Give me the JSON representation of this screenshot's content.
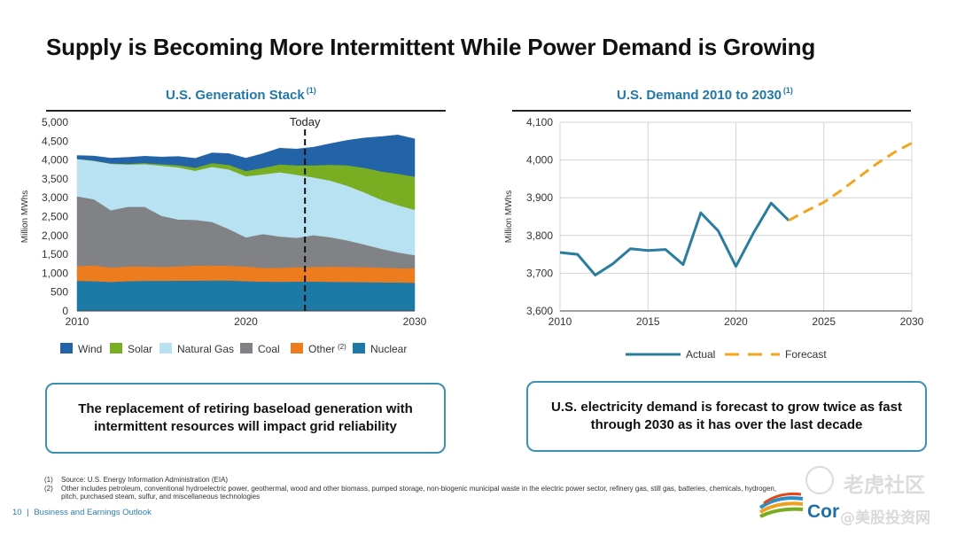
{
  "title": "Supply is Becoming More Intermittent While Power Demand is Growing",
  "left_chart": {
    "title": "U.S. Generation Stack",
    "title_note": "(1)",
    "ylabel": "Million MWhs",
    "today_label": "Today",
    "other_note": "(2)"
  },
  "right_chart": {
    "title": "U.S. Demand 2010 to 2030",
    "title_note": "(1)",
    "ylabel": "Million MWhs"
  },
  "chart_data": [
    {
      "type": "area",
      "stacked": true,
      "title": "U.S. Generation Stack",
      "ylabel": "Million MWhs",
      "xlim": [
        2010,
        2030
      ],
      "ylim": [
        0,
        5000
      ],
      "x_ticks": [
        2010,
        2020,
        2030
      ],
      "y_ticks": [
        0,
        500,
        1000,
        1500,
        2000,
        2500,
        3000,
        3500,
        4000,
        4500,
        5000
      ],
      "legend_position": "bottom",
      "annotation": {
        "label": "Today",
        "x": 2023.5
      },
      "x": [
        2010,
        2011,
        2012,
        2013,
        2014,
        2015,
        2016,
        2017,
        2018,
        2019,
        2020,
        2021,
        2022,
        2023,
        2024,
        2025,
        2026,
        2027,
        2028,
        2029,
        2030
      ],
      "series": [
        {
          "name": "Nuclear",
          "color": "#1d7aa6",
          "values": [
            800,
            790,
            770,
            790,
            800,
            800,
            805,
            805,
            810,
            810,
            790,
            780,
            775,
            780,
            780,
            775,
            770,
            765,
            760,
            755,
            750
          ]
        },
        {
          "name": "Other",
          "color": "#ec7c1e",
          "values": [
            390,
            420,
            380,
            390,
            380,
            370,
            380,
            400,
            400,
            390,
            390,
            360,
            370,
            380,
            390,
            400,
            400,
            400,
            390,
            380,
            380
          ]
        },
        {
          "name": "Coal",
          "color": "#808285",
          "values": [
            1850,
            1750,
            1520,
            1580,
            1580,
            1350,
            1240,
            1210,
            1150,
            970,
            770,
            900,
            830,
            780,
            840,
            780,
            700,
            600,
            500,
            420,
            350
          ]
        },
        {
          "name": "Natural Gas",
          "color": "#b8e2f2",
          "values": [
            990,
            1020,
            1230,
            1120,
            1130,
            1330,
            1380,
            1300,
            1460,
            1580,
            1620,
            1580,
            1700,
            1670,
            1530,
            1500,
            1450,
            1380,
            1300,
            1250,
            1200
          ]
        },
        {
          "name": "Solar",
          "color": "#79ae23",
          "values": [
            0,
            5,
            10,
            20,
            30,
            40,
            60,
            80,
            100,
            120,
            140,
            170,
            210,
            250,
            320,
            420,
            540,
            650,
            750,
            830,
            880
          ]
        },
        {
          "name": "Wind",
          "color": "#2363a8",
          "values": [
            90,
            120,
            140,
            170,
            180,
            190,
            230,
            250,
            270,
            300,
            340,
            380,
            430,
            430,
            480,
            560,
            660,
            790,
            920,
            1030,
            1000
          ]
        }
      ]
    },
    {
      "type": "line",
      "title": "U.S. Demand 2010 to 2030",
      "ylabel": "Million MWhs",
      "xlim": [
        2010,
        2030
      ],
      "ylim": [
        3600,
        4100
      ],
      "x_ticks": [
        2010,
        2015,
        2020,
        2025,
        2030
      ],
      "y_ticks": [
        3600,
        3700,
        3800,
        3900,
        4000,
        4100
      ],
      "y_tick_labels": [
        "3,600",
        "3,700",
        "3,800",
        "3,900",
        "4,000",
        "4,100"
      ],
      "grid": true,
      "legend_position": "bottom",
      "series": [
        {
          "name": "Actual",
          "style": "solid",
          "color": "#2a7d9e",
          "x": [
            2010,
            2011,
            2012,
            2013,
            2014,
            2015,
            2016,
            2017,
            2018,
            2019,
            2020,
            2021,
            2022,
            2023
          ],
          "y": [
            3755,
            3750,
            3695,
            3725,
            3765,
            3760,
            3763,
            3723,
            3860,
            3812,
            3718,
            3807,
            3886,
            3840
          ]
        },
        {
          "name": "Forecast",
          "style": "dashed",
          "color": "#f2a51f",
          "x": [
            2023,
            2024,
            2025,
            2026,
            2027,
            2028,
            2029,
            2030
          ],
          "y": [
            3840,
            3865,
            3888,
            3920,
            3955,
            3990,
            4020,
            4045
          ]
        }
      ]
    }
  ],
  "callouts": {
    "left": "The replacement of retiring baseload generation with intermittent resources will impact grid reliability",
    "right": "U.S. electricity demand is forecast to grow twice as fast through 2030 as it has over the last decade"
  },
  "footnotes": [
    {
      "num": "(1)",
      "text": "Source: U.S. Energy Information Administration (EIA)"
    },
    {
      "num": "(2)",
      "text": "Other includes petroleum, conventional hydroelectric power, geothermal, wood and other biomass, pumped storage, non-biogenic municipal waste in the electric power sector, refinery gas, still gas, batteries, chemicals, hydrogen, pitch, purchased steam, sulfur, and miscellaneous technologies"
    }
  ],
  "footer": {
    "page": "10",
    "separator": "|",
    "section": "Business and Earnings Outlook"
  },
  "brand": {
    "text": "Cor",
    "logo_icon": "stripes-logo-icon"
  },
  "watermark": {
    "top": "老虎社区",
    "bottom": "@美股投资网"
  }
}
